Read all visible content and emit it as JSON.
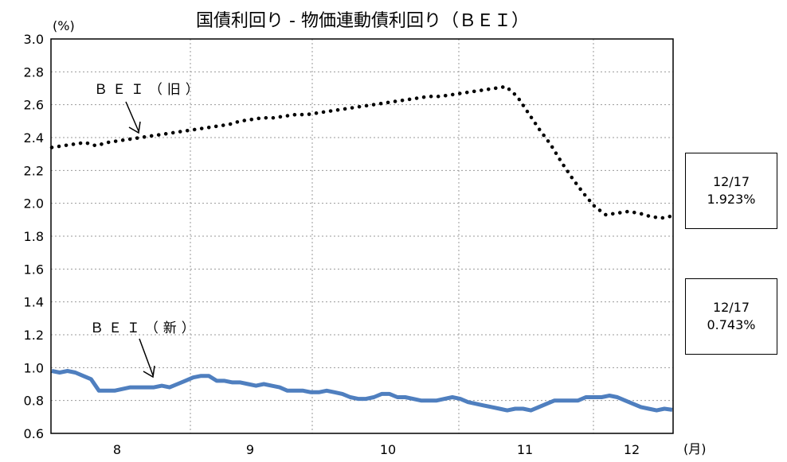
{
  "chart_data": {
    "type": "line",
    "title": "国債利回り - 物価連動債利回り（ＢＥＩ）",
    "y_unit": "(%)",
    "x_unit": "(月)",
    "ylim": [
      0.6,
      3.0
    ],
    "yticks": [
      0.6,
      0.8,
      1.0,
      1.2,
      1.4,
      1.6,
      1.8,
      2.0,
      2.2,
      2.4,
      2.6,
      2.8,
      3.0
    ],
    "ytick_labels": [
      "0.6",
      "0.8",
      "1.0",
      "1.2",
      "1.4",
      "1.6",
      "1.8",
      "2.0",
      "2.2",
      "2.4",
      "2.6",
      "2.8",
      "3.0"
    ],
    "month_labels": [
      "8",
      "9",
      "10",
      "11",
      "12"
    ],
    "grid": true,
    "series": [
      {
        "name": "ＢＥＩ（旧）",
        "style": "dotted",
        "color": "#000000",
        "values": [
          2.34,
          2.35,
          2.36,
          2.37,
          2.35,
          2.37,
          2.38,
          2.39,
          2.4,
          2.41,
          2.42,
          2.43,
          2.44,
          2.45,
          2.46,
          2.47,
          2.48,
          2.5,
          2.51,
          2.52,
          2.52,
          2.53,
          2.54,
          2.54,
          2.55,
          2.56,
          2.57,
          2.58,
          2.59,
          2.6,
          2.61,
          2.62,
          2.63,
          2.64,
          2.65,
          2.65,
          2.66,
          2.67,
          2.68,
          2.69,
          2.7,
          2.71,
          2.65,
          2.55,
          2.45,
          2.36,
          2.25,
          2.15,
          2.06,
          1.98,
          1.93,
          1.94,
          1.95,
          1.94,
          1.92,
          1.91,
          1.923
        ]
      },
      {
        "name": "ＢＥＩ（新）",
        "style": "solid",
        "color": "#4f7fbf",
        "values": [
          0.98,
          0.97,
          0.98,
          0.97,
          0.95,
          0.93,
          0.86,
          0.86,
          0.86,
          0.87,
          0.88,
          0.88,
          0.88,
          0.88,
          0.89,
          0.88,
          0.9,
          0.92,
          0.94,
          0.95,
          0.95,
          0.92,
          0.92,
          0.91,
          0.91,
          0.9,
          0.89,
          0.9,
          0.89,
          0.88,
          0.86,
          0.86,
          0.86,
          0.85,
          0.85,
          0.86,
          0.85,
          0.84,
          0.82,
          0.81,
          0.81,
          0.82,
          0.84,
          0.84,
          0.82,
          0.82,
          0.81,
          0.8,
          0.8,
          0.8,
          0.81,
          0.82,
          0.81,
          0.79,
          0.78,
          0.77,
          0.76,
          0.75,
          0.74,
          0.75,
          0.75,
          0.74,
          0.76,
          0.78,
          0.8,
          0.8,
          0.8,
          0.8,
          0.82,
          0.82,
          0.82,
          0.83,
          0.82,
          0.8,
          0.78,
          0.76,
          0.75,
          0.74,
          0.75,
          0.743
        ]
      }
    ],
    "annotations": [
      {
        "label": "ＢＥＩ（旧）",
        "points_to": "ＢＥＩ（旧）"
      },
      {
        "label": "ＢＥＩ（新）",
        "points_to": "ＢＥＩ（新）"
      }
    ],
    "callouts": [
      {
        "series": "ＢＥＩ（旧）",
        "date": "12/17",
        "value": "1.923%"
      },
      {
        "series": "ＢＥＩ（新）",
        "date": "12/17",
        "value": "0.743%"
      }
    ]
  }
}
